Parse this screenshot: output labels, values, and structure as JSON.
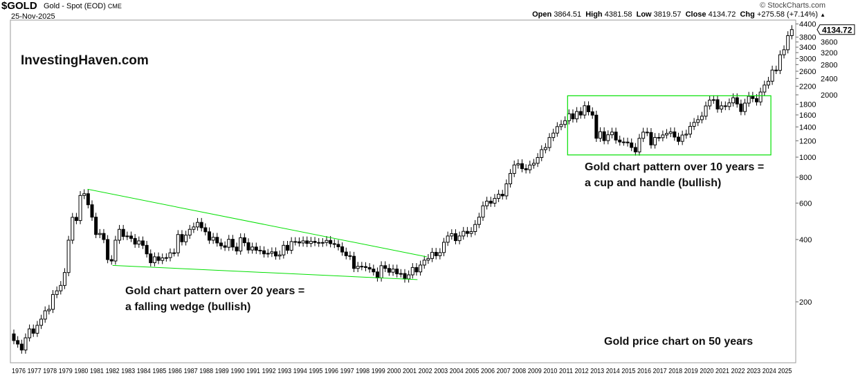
{
  "header": {
    "symbol": "$GOLD",
    "description": "Gold - Spot (EOD)",
    "exchange": "CME",
    "date": "25-Nov-2025",
    "brand": "© StockCharts.com",
    "open_label": "Open",
    "open": "3864.51",
    "high_label": "High",
    "high": "4381.58",
    "low_label": "Low",
    "low": "3819.57",
    "close_label": "Close",
    "close": "4134.72",
    "chg_label": "Chg",
    "chg": "+275.58 (+7.14%)",
    "chg_icon": "triangle-up-icon"
  },
  "annotations": {
    "watermark": "InvestingHaven.com",
    "wedge_line1": "Gold chart pattern over 20 years =",
    "wedge_line2": "a falling wedge (bullish)",
    "cup_line1": "Gold chart pattern over 10 years =",
    "cup_line2": "a cup and handle (bullish)",
    "footer_note": "Gold price chart on 50 years"
  },
  "chart_data": {
    "type": "candlestick",
    "period": "quarterly",
    "y_scale": "log",
    "ylim": [
      100,
      4500
    ],
    "y_ticks": [
      200,
      400,
      600,
      800,
      1000,
      1200,
      1400,
      1600,
      1800,
      2000,
      2200,
      2400,
      2600,
      2800,
      3000,
      3200,
      3400,
      3600,
      3800,
      4400
    ],
    "x_ticks": [
      1976,
      1977,
      1978,
      1979,
      1980,
      1981,
      1982,
      1983,
      1984,
      1985,
      1986,
      1987,
      1988,
      1989,
      1990,
      1991,
      1992,
      1993,
      1994,
      1995,
      1996,
      1997,
      1998,
      1999,
      2000,
      2001,
      2002,
      2003,
      2004,
      2005,
      2006,
      2007,
      2008,
      2009,
      2010,
      2011,
      2012,
      2013,
      2014,
      2015,
      2016,
      2017,
      2018,
      2019,
      2020,
      2021,
      2022,
      2023,
      2024,
      2025
    ],
    "last_price_label": "4134.72",
    "start_open": 140,
    "quarterly_closes": [
      130,
      125,
      117,
      134,
      148,
      141,
      154,
      165,
      181,
      184,
      217,
      226,
      240,
      277,
      397,
      512,
      494,
      653,
      666,
      589,
      513,
      423,
      428,
      400,
      320,
      315,
      397,
      448,
      414,
      416,
      405,
      380,
      394,
      375,
      341,
      309,
      330,
      317,
      326,
      327,
      345,
      345,
      423,
      390,
      420,
      448,
      460,
      484,
      456,
      436,
      397,
      410,
      385,
      373,
      367,
      401,
      368,
      352,
      408,
      386,
      356,
      368,
      355,
      353,
      341,
      343,
      349,
      333,
      337,
      375,
      355,
      391,
      390,
      385,
      394,
      383,
      392,
      387,
      384,
      387,
      396,
      382,
      379,
      369,
      348,
      334,
      332,
      290,
      297,
      296,
      293,
      288,
      279,
      261,
      299,
      290,
      278,
      288,
      273,
      274,
      258,
      270,
      293,
      279,
      301,
      318,
      324,
      347,
      334,
      346,
      388,
      416,
      427,
      395,
      416,
      438,
      428,
      437,
      473,
      513,
      582,
      613,
      599,
      632,
      662,
      650,
      743,
      834,
      917,
      930,
      880,
      869,
      916,
      934,
      996,
      1087,
      1113,
      1244,
      1307,
      1405,
      1439,
      1500,
      1620,
      1531,
      1662,
      1598,
      1772,
      1657,
      1596,
      1234,
      1327,
      1202,
      1283,
      1322,
      1210,
      1184,
      1183,
      1172,
      1114,
      1060,
      1233,
      1321,
      1316,
      1146,
      1245,
      1242,
      1280,
      1302,
      1325,
      1250,
      1192,
      1279,
      1292,
      1409,
      1472,
      1517,
      1577,
      1768,
      1886,
      1895,
      1708,
      1770,
      1757,
      1829,
      1937,
      1807,
      1661,
      1824,
      1969,
      1919,
      1849,
      2063,
      2230,
      2327,
      2635,
      2625,
      3124,
      3303,
      3864.51,
      4134.72
    ],
    "trendlines": [
      {
        "name": "wedge-upper",
        "from": [
          1980.8,
          700
        ],
        "to": [
          2002.5,
          330
        ],
        "color": "#00e000"
      },
      {
        "name": "wedge-lower",
        "from": [
          1982.4,
          300
        ],
        "to": [
          2001.9,
          256
        ],
        "color": "#00e000"
      }
    ],
    "rectangle": {
      "x": [
        2011.5,
        2024.5
      ],
      "y": [
        1025,
        1980
      ],
      "color": "#00e000"
    },
    "up_color": "#ffffff",
    "down_color": "#000000"
  }
}
